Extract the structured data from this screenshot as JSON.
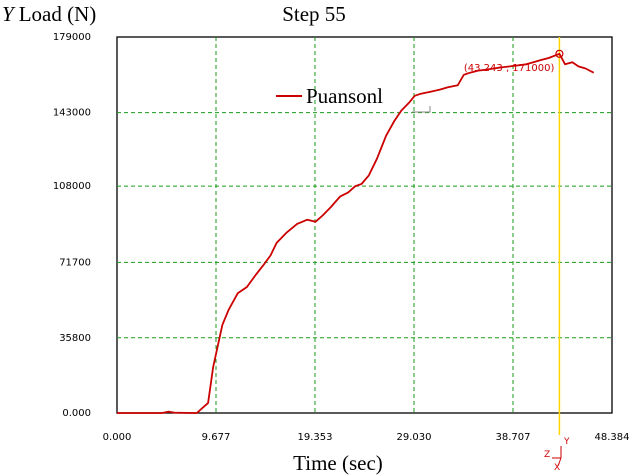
{
  "chart_data": {
    "type": "line",
    "title": "Step 55",
    "ylabel_italic": "Y",
    "ylabel": "Load (N)",
    "xlabel": "Time (sec)",
    "xlim": [
      0,
      48.384
    ],
    "ylim": [
      0,
      179000
    ],
    "x_ticks": [
      "0.000",
      "9.677",
      "19.353",
      "29.030",
      "38.707",
      "48.384"
    ],
    "x_tick_values": [
      0,
      9.677,
      19.353,
      29.03,
      38.707,
      48.384
    ],
    "y_ticks": [
      "179000",
      "143000",
      "108000",
      "71700",
      "35800",
      "0.000"
    ],
    "y_tick_values": [
      179000,
      143000,
      108000,
      71700,
      35800,
      0
    ],
    "grid": true,
    "series": [
      {
        "name": "Puansonl",
        "color": "#cc0000",
        "x": [
          0,
          2.4,
          4.4,
          5.0,
          5.6,
          7.3,
          7.8,
          8.9,
          9.4,
          10.3,
          10.9,
          11.8,
          12.7,
          13.6,
          14.4,
          15.0,
          15.6,
          16.6,
          17.6,
          18.6,
          19.4,
          20.1,
          20.9,
          21.8,
          22.6,
          23.3,
          23.9,
          24.6,
          25.4,
          26.3,
          27.1,
          27.8,
          28.6,
          29.1,
          29.7,
          30.7,
          31.6,
          32.3,
          33.3,
          33.9,
          34.5,
          35.3,
          36.1,
          36.8,
          37.5,
          38.4,
          39.2,
          40.0,
          40.7,
          41.4,
          42.2,
          43.243,
          43.8,
          44.5,
          45.1,
          45.8,
          46.6
        ],
        "y": [
          0,
          0,
          0,
          600,
          200,
          0,
          0,
          4800,
          22000,
          42000,
          49000,
          57000,
          60000,
          66000,
          71000,
          75000,
          81000,
          86000,
          90000,
          92000,
          91000,
          94000,
          98000,
          103000,
          105000,
          108000,
          109000,
          113000,
          121000,
          132000,
          139000,
          144000,
          148000,
          151000,
          152000,
          153000,
          154000,
          155000,
          156000,
          161000,
          162000,
          163000,
          163500,
          164000,
          164500,
          165000,
          165500,
          166000,
          167000,
          168000,
          169000,
          171000,
          166000,
          167000,
          165000,
          164000,
          162000
        ]
      }
    ],
    "annotations": [
      {
        "text": "(43.243 , 171000)",
        "x": 43.243,
        "y": 171000
      }
    ],
    "marker_line": {
      "x": 43.243,
      "color": "#ffd700"
    }
  },
  "legend": {
    "label": "Puansonl"
  },
  "axis_triad": {
    "y": "Y",
    "z": "Z",
    "x": "X"
  }
}
